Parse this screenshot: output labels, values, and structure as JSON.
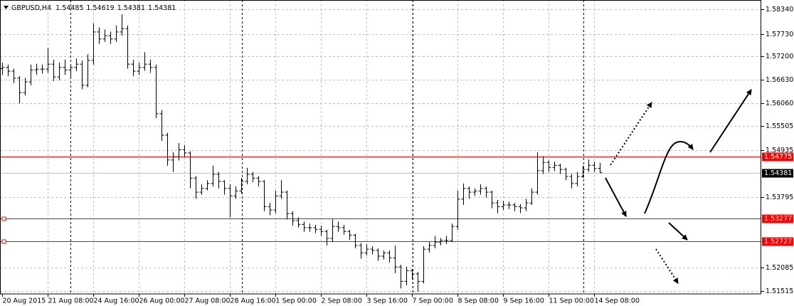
{
  "chart_data": {
    "type": "ohlc",
    "title": "GBPUSD,H4",
    "color": "#000000",
    "grid": true,
    "categories": [
      "20 Aug 2015",
      null,
      null,
      null,
      null,
      null,
      null,
      null,
      "21 Aug 08:00",
      null,
      null,
      null,
      null,
      null,
      null,
      null,
      "24 Aug 16:00",
      null,
      null,
      null,
      null,
      null,
      null,
      null,
      "26 Aug 00:00",
      null,
      null,
      null,
      null,
      null,
      null,
      null,
      "27 Aug 08:00",
      null,
      null,
      null,
      null,
      null,
      null,
      null,
      "28 Aug 16:00",
      null,
      null,
      null,
      null,
      null,
      null,
      null,
      "1 Sep 00:00",
      null,
      null,
      null,
      null,
      null,
      null,
      null,
      "2 Sep 08:00",
      null,
      null,
      null,
      null,
      null,
      null,
      null,
      "3 Sep 16:00",
      null,
      null,
      null,
      null,
      null,
      null,
      null,
      "7 Sep 00:00",
      null,
      null,
      null,
      null,
      null,
      null,
      null,
      "8 Sep 08:00",
      null,
      null,
      null,
      null,
      null,
      null,
      null,
      "9 Sep 16:00",
      null,
      null,
      null,
      null,
      null,
      null,
      null,
      "11 Sep 00:00",
      null,
      null,
      null,
      null,
      null,
      null,
      null,
      "14 Sep 08:00",
      null
    ],
    "open": [
      1.569,
      1.5693,
      1.5684,
      1.5667,
      1.5632,
      1.5658,
      1.5687,
      1.5689,
      1.5689,
      1.5701,
      1.567,
      1.5693,
      1.5687,
      1.5693,
      1.5701,
      1.565,
      1.571,
      1.5779,
      1.5762,
      1.577,
      1.5762,
      1.5779,
      1.5787,
      1.5701,
      1.5684,
      1.5693,
      1.5701,
      1.5693,
      1.5581,
      1.5529,
      1.5469,
      1.5477,
      1.5494,
      1.5486,
      1.5425,
      1.5391,
      1.54,
      1.5412,
      1.5434,
      1.5417,
      1.54,
      1.5382,
      1.5394,
      1.5417,
      1.5434,
      1.5425,
      1.5417,
      1.5356,
      1.5348,
      1.5382,
      1.5391,
      1.5339,
      1.5322,
      1.5313,
      1.5305,
      1.5305,
      1.5301,
      1.5296,
      1.5279,
      1.5308,
      1.5305,
      1.5296,
      1.5287,
      1.5262,
      1.5244,
      1.5253,
      1.525,
      1.5236,
      1.5244,
      1.5232,
      1.521,
      1.5175,
      1.5201,
      1.5193,
      1.5175,
      1.5253,
      1.5262,
      1.527,
      1.5274,
      1.5274,
      1.5308,
      1.5374,
      1.54,
      1.5391,
      1.5394,
      1.54,
      1.5391,
      1.5365,
      1.5356,
      1.536,
      1.536,
      1.5356,
      1.5353,
      1.5365,
      1.5391,
      1.5443,
      1.5463,
      1.5451,
      1.5456,
      1.5446,
      1.5429,
      1.5412,
      1.5429,
      1.5446,
      1.5456,
      1.54485
    ],
    "high": [
      1.5705,
      1.57,
      1.569,
      1.5672,
      1.5668,
      1.57,
      1.5702,
      1.57,
      1.574,
      1.5712,
      1.5705,
      1.5712,
      1.57,
      1.5715,
      1.571,
      1.5725,
      1.58,
      1.579,
      1.5785,
      1.578,
      1.5795,
      1.5822,
      1.5795,
      1.5712,
      1.5705,
      1.573,
      1.5712,
      1.57,
      1.559,
      1.5535,
      1.5488,
      1.551,
      1.5505,
      1.549,
      1.543,
      1.541,
      1.542,
      1.5455,
      1.544,
      1.542,
      1.541,
      1.5405,
      1.5425,
      1.545,
      1.544,
      1.543,
      1.542,
      1.5365,
      1.5395,
      1.542,
      1.5395,
      1.5345,
      1.533,
      1.532,
      1.5315,
      1.5312,
      1.531,
      1.53,
      1.5325,
      1.532,
      1.5312,
      1.53,
      1.529,
      1.5268,
      1.5265,
      1.526,
      1.5255,
      1.525,
      1.525,
      1.5262,
      1.5215,
      1.521,
      1.5205,
      1.5198,
      1.526,
      1.527,
      1.5285,
      1.528,
      1.5285,
      1.5315,
      1.5395,
      1.5412,
      1.5405,
      1.54,
      1.541,
      1.5405,
      1.5395,
      1.5372,
      1.537,
      1.5368,
      1.5365,
      1.5362,
      1.5375,
      1.54,
      1.5488,
      1.5478,
      1.5468,
      1.5465,
      1.546,
      1.545,
      1.5435,
      1.544,
      1.5455,
      1.547,
      1.5465,
      1.54619
    ],
    "low": [
      1.5675,
      1.5672,
      1.5655,
      1.5606,
      1.5625,
      1.565,
      1.5675,
      1.5678,
      1.568,
      1.566,
      1.5662,
      1.5675,
      1.567,
      1.5684,
      1.564,
      1.5645,
      1.57,
      1.575,
      1.5755,
      1.575,
      1.5755,
      1.577,
      1.569,
      1.5672,
      1.5675,
      1.5685,
      1.568,
      1.557,
      1.5515,
      1.5455,
      1.544,
      1.5468,
      1.5475,
      1.54,
      1.5375,
      1.5385,
      1.5395,
      1.5405,
      1.54,
      1.5385,
      1.533,
      1.5375,
      1.5388,
      1.541,
      1.5415,
      1.5405,
      1.5345,
      1.5335,
      1.534,
      1.5375,
      1.5325,
      1.531,
      1.5305,
      1.5295,
      1.5295,
      1.5292,
      1.5285,
      1.5262,
      1.527,
      1.5295,
      1.5288,
      1.5275,
      1.5255,
      1.523,
      1.5238,
      1.524,
      1.5225,
      1.5228,
      1.522,
      1.5195,
      1.5158,
      1.5165,
      1.518,
      1.515,
      1.517,
      1.5245,
      1.5255,
      1.5262,
      1.5265,
      1.527,
      1.53,
      1.536,
      1.5375,
      1.5382,
      1.5385,
      1.5378,
      1.5352,
      1.534,
      1.5348,
      1.535,
      1.5345,
      1.534,
      1.5345,
      1.536,
      1.5385,
      1.5435,
      1.544,
      1.5442,
      1.5435,
      1.542,
      1.54,
      1.5405,
      1.5425,
      1.544,
      1.544,
      1.54381
    ],
    "close": [
      1.5693,
      1.5684,
      1.5667,
      1.5632,
      1.5658,
      1.5687,
      1.5689,
      1.5689,
      1.5701,
      1.567,
      1.5693,
      1.5687,
      1.5693,
      1.5701,
      1.565,
      1.571,
      1.5779,
      1.5762,
      1.577,
      1.5762,
      1.5779,
      1.5787,
      1.5701,
      1.5684,
      1.5693,
      1.5701,
      1.5693,
      1.5581,
      1.5529,
      1.5469,
      1.5477,
      1.5494,
      1.5486,
      1.5425,
      1.5391,
      1.54,
      1.5412,
      1.5434,
      1.5417,
      1.54,
      1.5382,
      1.5394,
      1.5417,
      1.5434,
      1.5425,
      1.5417,
      1.5356,
      1.5348,
      1.5382,
      1.5391,
      1.5339,
      1.5322,
      1.5313,
      1.5305,
      1.5305,
      1.5301,
      1.5296,
      1.5279,
      1.5308,
      1.5305,
      1.5296,
      1.5287,
      1.5262,
      1.5244,
      1.5253,
      1.525,
      1.5236,
      1.5244,
      1.5232,
      1.521,
      1.5175,
      1.5201,
      1.5193,
      1.5175,
      1.5253,
      1.5262,
      1.527,
      1.5274,
      1.5274,
      1.5308,
      1.5374,
      1.54,
      1.5391,
      1.5394,
      1.54,
      1.5391,
      1.5365,
      1.5356,
      1.536,
      1.536,
      1.5356,
      1.5353,
      1.5365,
      1.5391,
      1.5443,
      1.5463,
      1.5451,
      1.5456,
      1.5446,
      1.5429,
      1.5412,
      1.5429,
      1.5446,
      1.5456,
      1.5448,
      1.54381
    ],
    "ylim": [
      1.51446,
      1.58564
    ],
    "yticks": [
      {
        "value": 1.5834,
        "label": "1.58340"
      },
      {
        "value": 1.5773,
        "label": "1.57730"
      },
      {
        "value": 1.572,
        "label": "1.57200"
      },
      {
        "value": 1.5663,
        "label": "1.56630"
      },
      {
        "value": 1.5606,
        "label": "1.56060"
      },
      1.55505,
      1.54935,
      1.53795,
      1.52085,
      1.51515
    ],
    "levels": [
      {
        "value": 1.54775,
        "color": "#ff0000"
      },
      {
        "value": 1.53277,
        "color": "#ff0000"
      },
      {
        "value": 1.52727,
        "color": "#ff0000"
      }
    ],
    "last_price_color": "#c0c0c0"
  }
}
